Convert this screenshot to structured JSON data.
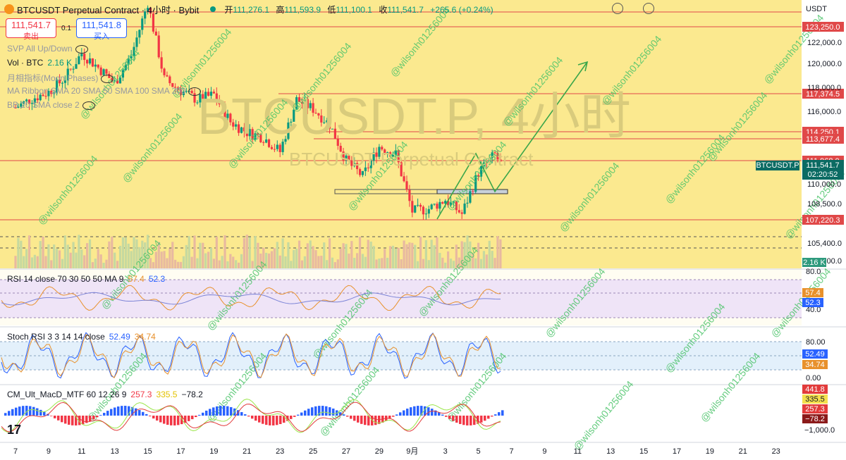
{
  "header": {
    "symbol": "BTCUSDT Perpetual Contract · 4小时 · Bybit",
    "open_label": "开",
    "open": "111,276.1",
    "high_label": "高",
    "high": "111,593.9",
    "low_label": "低",
    "low": "111,100.1",
    "close_label": "收",
    "close": "111,541.7",
    "change": "+265.6 (+0.24%)"
  },
  "trade": {
    "sell_price": "111,541.7",
    "sell_label": "卖出",
    "buy_price": "111,541.8",
    "buy_label": "买入",
    "spread": "0.1"
  },
  "indicators": {
    "svp": "SVP All Up/Down",
    "vol_label": "Vol · BTC",
    "vol_value": "2.16 K",
    "moon": "月相指标(Moon Phases)",
    "ribbon": "MA Ribbon SMA 20 SMA 50 SMA 100 SMA 200",
    "bb": "BB 20 SMA close 2"
  },
  "currency": "USDT",
  "watermark_big": "BTCUSDT.P, 4小时",
  "watermark_small": "BTCUSDT Perpetual Contract",
  "watermark_tag": "@wilsonh01256004",
  "colors": {
    "up": "#089981",
    "down": "#f23645",
    "bg_main": "#fbe98f",
    "level": "#e04848",
    "arrow": "#3aa64a"
  },
  "chart_data": {
    "type": "candlestick",
    "title": "BTCUSDT Perpetual Contract · 4小时 · Bybit",
    "ylim": [
      103800,
      124500
    ],
    "y_ticks": [
      "122,000.0",
      "120,000.0",
      "118,000.0",
      "116,000.0",
      "110,000.0",
      "108,500.0",
      "105,400.0",
      "103,800.0"
    ],
    "x_ticks": [
      "7",
      "9",
      "11",
      "13",
      "15",
      "17",
      "19",
      "21",
      "23",
      "25",
      "27",
      "29",
      "9月",
      "3",
      "5",
      "7",
      "9",
      "11",
      "13",
      "15",
      "17",
      "19",
      "21",
      "23"
    ],
    "price_levels": [
      {
        "label": "123,250.0",
        "color": "#e04848"
      },
      {
        "label": "117,374.5",
        "color": "#e04848"
      },
      {
        "label": "114,250.1",
        "color": "#e04848"
      },
      {
        "label": "113,677.4",
        "color": "#e04848"
      },
      {
        "label": "111,968.0",
        "color": "#e04848"
      },
      {
        "label": "107,220.3",
        "color": "#e04848"
      }
    ],
    "last_price": "111,541.7",
    "countdown": "02:20:52",
    "bar_label": "BTCUSDT.P",
    "volume_label": "2.16 K",
    "close_path_x": [
      7,
      8,
      9,
      10,
      11,
      12,
      13,
      14,
      15,
      16,
      17,
      18,
      19,
      20,
      21,
      22,
      23,
      24,
      25,
      26,
      27,
      28,
      29,
      30,
      31,
      32,
      33,
      34,
      35,
      36,
      37,
      38
    ],
    "close_path_y": [
      116200,
      116900,
      117400,
      118500,
      120400,
      119300,
      118100,
      120200,
      124300,
      118400,
      117500,
      116800,
      117200,
      115100,
      114300,
      113900,
      112800,
      116800,
      116100,
      114900,
      112100,
      110900,
      113200,
      112600,
      108200,
      108400,
      109100,
      108000,
      111200,
      112600,
      110300,
      111540
    ],
    "rsi": {
      "label": "RSI 14 close 70 30 50 50 MA 9",
      "rsi": "57.4",
      "ma": "52.3",
      "upper": "80.0",
      "lower": "40.0",
      "ticks": [
        "80.0",
        "40.0"
      ]
    },
    "stoch": {
      "label": "Stoch RSI 3 3 14 14 close",
      "k": "52.49",
      "d": "34.74",
      "ticks": [
        "80.00",
        "0.00"
      ]
    },
    "macd": {
      "label": "CM_Ult_MacD_MTF 60 12 26 9",
      "v1": "257.3",
      "v2": "335.5",
      "v3": "−78.2",
      "tags": [
        "441.8",
        "335.5",
        "257.3",
        "−78.2"
      ],
      "ticks": [
        "−1,000.0"
      ]
    }
  }
}
